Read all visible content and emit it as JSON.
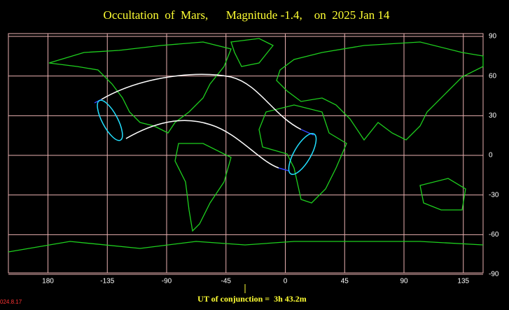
{
  "map": {
    "title": "Occultation  of  Mars,      Magnitude -1.4,    on  2025 Jan 14",
    "xlim": [
      150,
      510
    ],
    "xticks": [
      {
        "value": 180,
        "label": "180"
      },
      {
        "value": 225,
        "label": "-135"
      },
      {
        "value": 270,
        "label": "-90"
      },
      {
        "value": 315,
        "label": "-45"
      },
      {
        "value": 360,
        "label": "0"
      },
      {
        "value": 405,
        "label": "45"
      },
      {
        "value": 450,
        "label": "90"
      },
      {
        "value": 495,
        "label": "135"
      }
    ],
    "ylim": [
      -90,
      90
    ],
    "yticks": [
      90,
      60,
      30,
      0,
      -30,
      -60,
      -90
    ],
    "footer": "UT of conjunction =  3h 43.2m",
    "version": "024.8.17"
  }
}
